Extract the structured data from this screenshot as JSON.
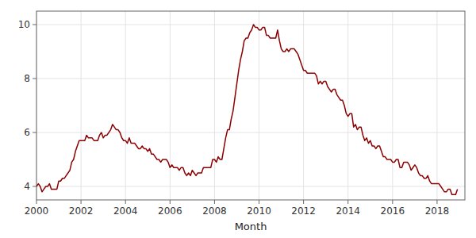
{
  "chart_data": {
    "type": "line",
    "xlabel": "Month",
    "color": "#8B0000",
    "grid": true,
    "xlim": [
      2000.0,
      2019.25
    ],
    "ylim": [
      3.5,
      10.5
    ],
    "xticks": [
      2000,
      2002,
      2004,
      2006,
      2008,
      2010,
      2012,
      2014,
      2016,
      2018
    ],
    "yticks": [
      4,
      6,
      8,
      10
    ],
    "x": [
      2000.0,
      2000.083,
      2000.167,
      2000.25,
      2000.333,
      2000.417,
      2000.5,
      2000.583,
      2000.667,
      2000.75,
      2000.833,
      2000.917,
      2001.0,
      2001.083,
      2001.167,
      2001.25,
      2001.333,
      2001.417,
      2001.5,
      2001.583,
      2001.667,
      2001.75,
      2001.833,
      2001.917,
      2002.0,
      2002.083,
      2002.167,
      2002.25,
      2002.333,
      2002.417,
      2002.5,
      2002.583,
      2002.667,
      2002.75,
      2002.833,
      2002.917,
      2003.0,
      2003.083,
      2003.167,
      2003.25,
      2003.333,
      2003.417,
      2003.5,
      2003.583,
      2003.667,
      2003.75,
      2003.833,
      2003.917,
      2004.0,
      2004.083,
      2004.167,
      2004.25,
      2004.333,
      2004.417,
      2004.5,
      2004.583,
      2004.667,
      2004.75,
      2004.833,
      2004.917,
      2005.0,
      2005.083,
      2005.167,
      2005.25,
      2005.333,
      2005.417,
      2005.5,
      2005.583,
      2005.667,
      2005.75,
      2005.833,
      2005.917,
      2006.0,
      2006.083,
      2006.167,
      2006.25,
      2006.333,
      2006.417,
      2006.5,
      2006.583,
      2006.667,
      2006.75,
      2006.833,
      2006.917,
      2007.0,
      2007.083,
      2007.167,
      2007.25,
      2007.333,
      2007.417,
      2007.5,
      2007.583,
      2007.667,
      2007.75,
      2007.833,
      2007.917,
      2008.0,
      2008.083,
      2008.167,
      2008.25,
      2008.333,
      2008.417,
      2008.5,
      2008.583,
      2008.667,
      2008.75,
      2008.833,
      2008.917,
      2009.0,
      2009.083,
      2009.167,
      2009.25,
      2009.333,
      2009.417,
      2009.5,
      2009.583,
      2009.667,
      2009.75,
      2009.833,
      2009.917,
      2010.0,
      2010.083,
      2010.167,
      2010.25,
      2010.333,
      2010.417,
      2010.5,
      2010.583,
      2010.667,
      2010.75,
      2010.833,
      2010.917,
      2011.0,
      2011.083,
      2011.167,
      2011.25,
      2011.333,
      2011.417,
      2011.5,
      2011.583,
      2011.667,
      2011.75,
      2011.833,
      2011.917,
      2012.0,
      2012.083,
      2012.167,
      2012.25,
      2012.333,
      2012.417,
      2012.5,
      2012.583,
      2012.667,
      2012.75,
      2012.833,
      2012.917,
      2013.0,
      2013.083,
      2013.167,
      2013.25,
      2013.333,
      2013.417,
      2013.5,
      2013.583,
      2013.667,
      2013.75,
      2013.833,
      2013.917,
      2014.0,
      2014.083,
      2014.167,
      2014.25,
      2014.333,
      2014.417,
      2014.5,
      2014.583,
      2014.667,
      2014.75,
      2014.833,
      2014.917,
      2015.0,
      2015.083,
      2015.167,
      2015.25,
      2015.333,
      2015.417,
      2015.5,
      2015.583,
      2015.667,
      2015.75,
      2015.833,
      2015.917,
      2016.0,
      2016.083,
      2016.167,
      2016.25,
      2016.333,
      2016.417,
      2016.5,
      2016.583,
      2016.667,
      2016.75,
      2016.833,
      2016.917,
      2017.0,
      2017.083,
      2017.167,
      2017.25,
      2017.333,
      2017.417,
      2017.5,
      2017.583,
      2017.667,
      2017.75,
      2017.833,
      2017.917,
      2018.0,
      2018.083,
      2018.167,
      2018.25,
      2018.333,
      2018.417,
      2018.5,
      2018.583,
      2018.667,
      2018.75,
      2018.833,
      2018.917
    ],
    "values": [
      4.0,
      4.1,
      4.0,
      3.8,
      3.9,
      4.0,
      4.0,
      4.1,
      3.9,
      3.9,
      3.9,
      3.9,
      4.2,
      4.2,
      4.3,
      4.3,
      4.4,
      4.5,
      4.6,
      4.9,
      5.0,
      5.3,
      5.5,
      5.7,
      5.7,
      5.7,
      5.7,
      5.9,
      5.8,
      5.8,
      5.8,
      5.7,
      5.7,
      5.7,
      5.9,
      6.0,
      5.8,
      5.9,
      5.9,
      6.0,
      6.1,
      6.3,
      6.2,
      6.1,
      6.1,
      6.0,
      5.8,
      5.7,
      5.7,
      5.6,
      5.8,
      5.6,
      5.6,
      5.6,
      5.5,
      5.4,
      5.4,
      5.5,
      5.4,
      5.4,
      5.3,
      5.4,
      5.2,
      5.2,
      5.1,
      5.0,
      5.0,
      4.9,
      5.0,
      5.0,
      5.0,
      4.9,
      4.7,
      4.8,
      4.7,
      4.7,
      4.7,
      4.6,
      4.7,
      4.7,
      4.5,
      4.4,
      4.5,
      4.4,
      4.6,
      4.5,
      4.4,
      4.5,
      4.5,
      4.5,
      4.7,
      4.7,
      4.7,
      4.7,
      4.7,
      5.0,
      5.0,
      4.9,
      5.1,
      5.0,
      5.0,
      5.4,
      5.8,
      6.1,
      6.1,
      6.5,
      6.8,
      7.3,
      7.8,
      8.3,
      8.7,
      9.0,
      9.4,
      9.5,
      9.5,
      9.7,
      9.8,
      10.0,
      9.9,
      9.9,
      9.8,
      9.8,
      9.9,
      9.9,
      9.6,
      9.6,
      9.5,
      9.5,
      9.5,
      9.5,
      9.8,
      9.4,
      9.1,
      9.0,
      9.0,
      9.1,
      9.0,
      9.1,
      9.1,
      9.1,
      9.0,
      8.9,
      8.7,
      8.5,
      8.3,
      8.3,
      8.2,
      8.2,
      8.2,
      8.2,
      8.2,
      8.1,
      7.8,
      7.9,
      7.8,
      7.9,
      7.9,
      7.7,
      7.6,
      7.5,
      7.6,
      7.6,
      7.4,
      7.3,
      7.2,
      7.2,
      7.0,
      6.7,
      6.6,
      6.7,
      6.7,
      6.2,
      6.3,
      6.1,
      6.2,
      6.2,
      5.9,
      5.7,
      5.8,
      5.6,
      5.7,
      5.5,
      5.5,
      5.4,
      5.5,
      5.5,
      5.3,
      5.1,
      5.1,
      5.0,
      5.0,
      5.0,
      4.9,
      4.9,
      5.0,
      5.0,
      4.7,
      4.7,
      4.9,
      4.9,
      4.9,
      4.8,
      4.6,
      4.7,
      4.8,
      4.7,
      4.5,
      4.4,
      4.4,
      4.3,
      4.3,
      4.4,
      4.2,
      4.1,
      4.1,
      4.1,
      4.1,
      4.1,
      4.0,
      3.9,
      3.8,
      3.8,
      3.9,
      3.9,
      3.7,
      3.7,
      3.7,
      3.9
    ]
  }
}
